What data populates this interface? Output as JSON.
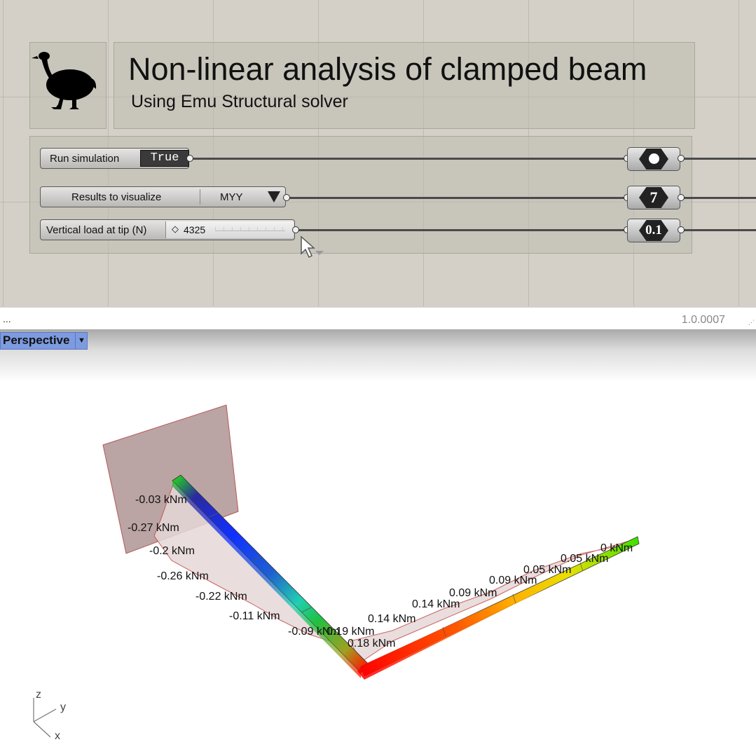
{
  "canvas": {
    "title": "Non-linear analysis of clamped beam",
    "subtitle": "Using Emu Structural solver",
    "logo_icon": "emu-bird-icon",
    "toggle": {
      "label": "Run simulation",
      "value": "True"
    },
    "value_list": {
      "label": "Results to visualize",
      "value": "MYY"
    },
    "slider": {
      "label": "Vertical load at tip (N)",
      "value": "4325"
    },
    "relays": [
      {
        "icon": "boolean-param-icon"
      },
      {
        "value": "7"
      },
      {
        "value": "0.1"
      }
    ]
  },
  "status_bar": {
    "left_text": "...",
    "version": "1.0.0007"
  },
  "viewport": {
    "name": "Perspective",
    "labels": [
      "-0.03 kNm",
      "-0.27 kNm",
      "-0.2 kNm",
      "-0.26 kNm",
      "-0.22 kNm",
      "-0.11 kNm",
      "-0.09 kNm",
      "0.19 kNm",
      "0.18 kNm",
      "0.14 kNm",
      "0.14 kNm",
      "0.09 kNm",
      "0.09 kNm",
      "0.05 kNm",
      "0.05 kNm",
      "0 kNm"
    ],
    "axes": {
      "z": "z",
      "y": "y",
      "x": "x"
    }
  }
}
